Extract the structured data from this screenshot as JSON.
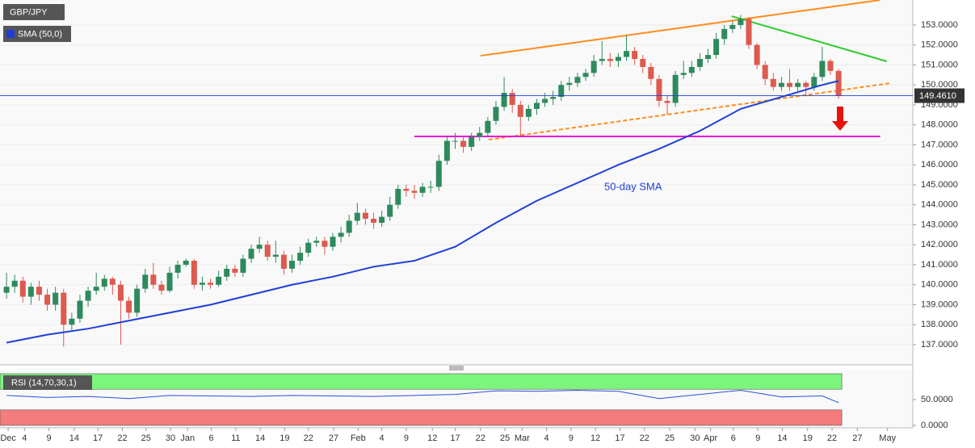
{
  "chart_data": {
    "type": "candlestick",
    "title": "GBP/JPY",
    "indicator_label": "SMA (50,0)",
    "sma_annotation": "50-day SMA",
    "up_color": "#2e8a5c",
    "down_color": "#dd5a4e",
    "xlim": [
      -0.8,
      111.1
    ],
    "ylim": [
      136.07,
      154.25
    ],
    "grid": true,
    "yticks": [
      {
        "value": 137,
        "label": "137.0000"
      },
      {
        "value": 138,
        "label": "138.0000"
      },
      {
        "value": 139,
        "label": "139.0000"
      },
      {
        "value": 140,
        "label": "140.0000"
      },
      {
        "value": 141,
        "label": "141.0000"
      },
      {
        "value": 142,
        "label": "142.0000"
      },
      {
        "value": 143,
        "label": "143.0000"
      },
      {
        "value": 144,
        "label": "144.0000"
      },
      {
        "value": 145,
        "label": "145.0000"
      },
      {
        "value": 146,
        "label": "146.0000"
      },
      {
        "value": 147,
        "label": "147.0000"
      },
      {
        "value": 148,
        "label": "148.0000"
      },
      {
        "value": 149,
        "label": "149.0000"
      },
      {
        "value": 150,
        "label": "150.0000"
      },
      {
        "value": 151,
        "label": "151.0000"
      },
      {
        "value": 152,
        "label": "152.0000"
      },
      {
        "value": 153,
        "label": "153.0000"
      }
    ],
    "xticks": [
      {
        "value": 0.2,
        "label": "Dec"
      },
      {
        "value": 2.2,
        "label": "4"
      },
      {
        "value": 5.2,
        "label": "9"
      },
      {
        "value": 8.3,
        "label": "14"
      },
      {
        "value": 11.2,
        "label": "17"
      },
      {
        "value": 14.2,
        "label": "22"
      },
      {
        "value": 17.1,
        "label": "25"
      },
      {
        "value": 20.1,
        "label": "30"
      },
      {
        "value": 22.2,
        "label": "Jan"
      },
      {
        "value": 25.1,
        "label": "6"
      },
      {
        "value": 28.1,
        "label": "11"
      },
      {
        "value": 31.1,
        "label": "14"
      },
      {
        "value": 34.1,
        "label": "19"
      },
      {
        "value": 37.0,
        "label": "22"
      },
      {
        "value": 40.1,
        "label": "27"
      },
      {
        "value": 43.1,
        "label": "Feb"
      },
      {
        "value": 46.0,
        "label": "4"
      },
      {
        "value": 49.0,
        "label": "9"
      },
      {
        "value": 52.2,
        "label": "12"
      },
      {
        "value": 55.0,
        "label": "17"
      },
      {
        "value": 58.1,
        "label": "22"
      },
      {
        "value": 61.1,
        "label": "25"
      },
      {
        "value": 63.2,
        "label": "Mar"
      },
      {
        "value": 66.2,
        "label": "4"
      },
      {
        "value": 69.2,
        "label": "9"
      },
      {
        "value": 72.2,
        "label": "12"
      },
      {
        "value": 75.2,
        "label": "17"
      },
      {
        "value": 78.2,
        "label": "22"
      },
      {
        "value": 81.3,
        "label": "25"
      },
      {
        "value": 84.4,
        "label": "30"
      },
      {
        "value": 86.3,
        "label": "Apr"
      },
      {
        "value": 89.1,
        "label": "6"
      },
      {
        "value": 92.1,
        "label": "9"
      },
      {
        "value": 95.1,
        "label": "14"
      },
      {
        "value": 98.2,
        "label": "19"
      },
      {
        "value": 101.2,
        "label": "22"
      },
      {
        "value": 104.3,
        "label": "27"
      },
      {
        "value": 108.0,
        "label": "May"
      }
    ],
    "candles": [
      [
        139.6,
        140.6,
        139.3,
        139.9
      ],
      [
        139.9,
        140.5,
        139.6,
        140.2
      ],
      [
        140.2,
        140.4,
        139.1,
        139.4
      ],
      [
        139.4,
        140.1,
        139.0,
        139.9
      ],
      [
        139.9,
        140.2,
        139.2,
        139.5
      ],
      [
        139.5,
        139.8,
        138.7,
        139.0
      ],
      [
        139.0,
        139.9,
        138.7,
        139.6
      ],
      [
        139.6,
        139.8,
        136.9,
        138.0
      ],
      [
        138.0,
        138.6,
        137.7,
        138.3
      ],
      [
        138.3,
        139.5,
        138.1,
        139.2
      ],
      [
        139.2,
        139.9,
        138.9,
        139.7
      ],
      [
        139.7,
        140.6,
        139.5,
        139.9
      ],
      [
        139.9,
        140.5,
        139.7,
        140.3
      ],
      [
        140.3,
        140.4,
        139.5,
        140.0
      ],
      [
        140.0,
        140.2,
        137.0,
        139.2
      ],
      [
        139.2,
        139.4,
        138.3,
        138.6
      ],
      [
        138.6,
        140.0,
        138.4,
        139.8
      ],
      [
        139.8,
        140.8,
        139.6,
        140.5
      ],
      [
        140.5,
        141.1,
        139.8,
        140.0
      ],
      [
        140.0,
        140.2,
        139.5,
        139.7
      ],
      [
        139.7,
        140.9,
        139.6,
        140.6
      ],
      [
        140.6,
        141.2,
        140.3,
        141.0
      ],
      [
        141.0,
        141.3,
        140.9,
        141.2
      ],
      [
        141.2,
        141.3,
        139.8,
        140.0
      ],
      [
        140.0,
        140.4,
        139.7,
        140.1
      ],
      [
        140.1,
        140.3,
        139.8,
        140.0
      ],
      [
        140.0,
        140.7,
        139.9,
        140.4
      ],
      [
        140.4,
        141.0,
        140.2,
        140.8
      ],
      [
        140.8,
        141.0,
        140.4,
        140.6
      ],
      [
        140.6,
        141.5,
        140.4,
        141.3
      ],
      [
        141.3,
        142.0,
        141.1,
        141.8
      ],
      [
        141.8,
        142.4,
        141.6,
        142.0
      ],
      [
        142.0,
        142.2,
        141.2,
        141.4
      ],
      [
        141.4,
        142.2,
        141.1,
        141.5
      ],
      [
        141.5,
        141.7,
        140.5,
        140.8
      ],
      [
        140.8,
        141.5,
        140.6,
        141.2
      ],
      [
        141.2,
        141.9,
        141.0,
        141.6
      ],
      [
        141.6,
        142.3,
        141.4,
        142.1
      ],
      [
        142.1,
        142.4,
        141.9,
        142.2
      ],
      [
        142.2,
        142.4,
        141.5,
        141.9
      ],
      [
        141.9,
        142.6,
        141.7,
        142.4
      ],
      [
        142.4,
        142.9,
        142.1,
        142.6
      ],
      [
        142.6,
        143.5,
        142.4,
        143.2
      ],
      [
        143.2,
        144.1,
        143.0,
        143.6
      ],
      [
        143.6,
        143.8,
        143.0,
        143.3
      ],
      [
        143.3,
        143.6,
        142.8,
        143.1
      ],
      [
        143.1,
        143.7,
        142.9,
        143.4
      ],
      [
        143.4,
        144.4,
        143.2,
        144.0
      ],
      [
        144.0,
        145.0,
        143.8,
        144.8
      ],
      [
        144.8,
        145.0,
        144.4,
        144.7
      ],
      [
        144.7,
        145.0,
        144.3,
        144.6
      ],
      [
        144.6,
        145.1,
        144.4,
        144.9
      ],
      [
        144.9,
        145.2,
        144.6,
        144.9
      ],
      [
        144.9,
        146.5,
        144.7,
        146.2
      ],
      [
        146.2,
        147.4,
        146.0,
        147.2
      ],
      [
        147.2,
        147.6,
        146.8,
        147.2
      ],
      [
        147.2,
        147.4,
        146.6,
        146.9
      ],
      [
        146.9,
        147.6,
        146.7,
        147.4
      ],
      [
        147.4,
        147.9,
        147.2,
        147.6
      ],
      [
        147.6,
        148.4,
        147.4,
        148.2
      ],
      [
        148.2,
        149.2,
        148.0,
        148.9
      ],
      [
        148.9,
        150.4,
        148.7,
        149.6
      ],
      [
        149.6,
        149.8,
        148.6,
        149.0
      ],
      [
        149.0,
        149.2,
        147.4,
        148.4
      ],
      [
        148.4,
        149.0,
        148.2,
        148.8
      ],
      [
        148.8,
        149.3,
        148.5,
        149.1
      ],
      [
        149.1,
        149.6,
        148.9,
        149.3
      ],
      [
        149.3,
        149.7,
        149.0,
        149.4
      ],
      [
        149.4,
        150.2,
        149.2,
        150.0
      ],
      [
        150.0,
        150.4,
        149.7,
        150.1
      ],
      [
        150.1,
        150.6,
        149.9,
        150.4
      ],
      [
        150.4,
        150.8,
        150.2,
        150.6
      ],
      [
        150.6,
        151.5,
        150.4,
        151.2
      ],
      [
        151.2,
        152.2,
        151.0,
        151.3
      ],
      [
        151.3,
        151.6,
        150.9,
        151.2
      ],
      [
        151.2,
        151.6,
        150.9,
        151.4
      ],
      [
        151.4,
        152.5,
        151.2,
        151.7
      ],
      [
        151.7,
        151.9,
        151.0,
        151.3
      ],
      [
        151.3,
        151.5,
        150.6,
        150.9
      ],
      [
        150.9,
        151.1,
        150.0,
        150.3
      ],
      [
        150.3,
        150.5,
        148.9,
        149.2
      ],
      [
        149.2,
        149.5,
        148.5,
        149.1
      ],
      [
        149.1,
        150.7,
        148.9,
        150.5
      ],
      [
        150.5,
        151.2,
        150.3,
        150.6
      ],
      [
        150.6,
        151.2,
        150.4,
        150.9
      ],
      [
        150.9,
        151.6,
        150.7,
        151.3
      ],
      [
        151.3,
        151.8,
        151.1,
        151.5
      ],
      [
        151.5,
        152.6,
        151.3,
        152.3
      ],
      [
        152.3,
        153.0,
        152.0,
        152.8
      ],
      [
        152.8,
        153.2,
        152.6,
        153.0
      ],
      [
        153.0,
        153.5,
        152.8,
        153.3
      ],
      [
        153.3,
        153.4,
        151.8,
        152.0
      ],
      [
        152.0,
        152.1,
        150.8,
        151.0
      ],
      [
        151.0,
        151.2,
        150.0,
        150.3
      ],
      [
        150.3,
        150.6,
        149.7,
        149.9
      ],
      [
        149.9,
        150.4,
        149.7,
        150.1
      ],
      [
        150.1,
        150.8,
        149.7,
        149.9
      ],
      [
        149.9,
        150.3,
        149.7,
        150.1
      ],
      [
        150.1,
        150.2,
        149.5,
        149.9
      ],
      [
        149.9,
        150.6,
        149.7,
        150.4
      ],
      [
        150.4,
        151.9,
        150.2,
        151.2
      ],
      [
        151.2,
        151.3,
        150.5,
        150.7
      ],
      [
        150.7,
        150.8,
        149.3,
        149.46
      ]
    ],
    "sma": {
      "color": "#1f3fd6",
      "x": [
        0,
        5,
        10,
        15,
        20,
        25,
        30,
        35,
        40,
        45,
        50,
        55,
        60,
        65,
        70,
        75,
        80,
        85,
        90,
        95,
        100,
        102
      ],
      "values": [
        137.1,
        137.5,
        137.8,
        138.2,
        138.6,
        139.0,
        139.5,
        140.0,
        140.4,
        140.9,
        141.2,
        141.9,
        143.1,
        144.2,
        145.1,
        146.0,
        146.8,
        147.7,
        148.8,
        149.4,
        150.0,
        150.2
      ]
    },
    "last_price": {
      "value": 149.461,
      "label": "149.4610"
    },
    "trendlines": [
      {
        "color": "#ff8c1a",
        "dashed": false,
        "points": [
          [
            58.1,
            151.46
          ],
          [
            107.1,
            154.25
          ]
        ]
      },
      {
        "color": "#ff8c1a",
        "dashed": true,
        "points": [
          [
            59.1,
            147.26
          ],
          [
            108.4,
            150.09
          ]
        ]
      },
      {
        "color": "#2ecc2e",
        "dashed": false,
        "points": [
          [
            88.9,
            153.44
          ],
          [
            107.9,
            151.18
          ]
        ]
      },
      {
        "color": "#ee10d8",
        "dashed": false,
        "points": [
          [
            50.0,
            147.42
          ],
          [
            107.1,
            147.42
          ]
        ]
      }
    ],
    "rsi": {
      "label": "RSI (14,70,30,1)",
      "color": "#2a4fd8",
      "ylim": [
        -4.7,
        107.8
      ],
      "yticks": [
        {
          "value": 0,
          "label": "0.0000"
        },
        {
          "value": 50,
          "label": "50.0000"
        }
      ],
      "overbought": [
        70,
        100
      ],
      "oversold": [
        0,
        30
      ],
      "x": [
        0,
        5,
        10,
        15,
        20,
        25,
        30,
        35,
        40,
        45,
        50,
        55,
        60,
        65,
        70,
        75,
        80,
        85,
        90,
        95,
        100,
        102
      ],
      "values": [
        58,
        54,
        56,
        52,
        58,
        57,
        56,
        58,
        57,
        56,
        58,
        60,
        67,
        66,
        68,
        66,
        52,
        60,
        68,
        55,
        57,
        44
      ]
    }
  }
}
